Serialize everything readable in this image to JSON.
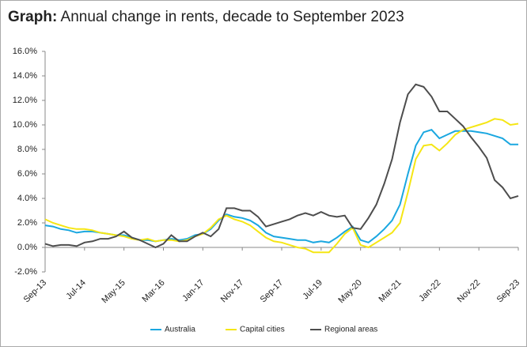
{
  "chart_data": {
    "type": "line",
    "title_prefix": "Graph:",
    "title": "Annual change in rents, decade to September 2023",
    "categories": [
      "Sep-13",
      null,
      null,
      null,
      null,
      "Jul-14",
      null,
      null,
      null,
      null,
      "May-15",
      null,
      null,
      null,
      null,
      "Mar-16",
      null,
      null,
      null,
      null,
      "Jan-17",
      null,
      null,
      null,
      null,
      "Nov-17",
      null,
      null,
      null,
      null,
      "Sep-17",
      null,
      null,
      null,
      null,
      "Jul-19",
      null,
      null,
      null,
      null,
      "May-20",
      null,
      null,
      null,
      null,
      "Mar-21",
      null,
      null,
      null,
      null,
      "Jan-22",
      null,
      null,
      null,
      null,
      "Nov-22",
      null,
      null,
      null,
      null,
      "Sep-23"
    ],
    "series": [
      {
        "name": "Australia",
        "color": "#1aa7e0",
        "values": [
          1.8,
          1.7,
          1.5,
          1.4,
          1.2,
          1.3,
          1.3,
          1.2,
          1.1,
          1.0,
          1.0,
          0.8,
          0.6,
          0.6,
          0.5,
          0.6,
          0.7,
          0.6,
          0.7,
          1.0,
          1.1,
          1.5,
          2.2,
          2.7,
          2.5,
          2.4,
          2.2,
          1.8,
          1.2,
          0.9,
          0.8,
          0.7,
          0.6,
          0.6,
          0.4,
          0.5,
          0.4,
          0.8,
          1.3,
          1.7,
          0.6,
          0.4,
          0.9,
          1.5,
          2.2,
          3.5,
          6.0,
          8.3,
          9.4,
          9.6,
          8.9,
          9.2,
          9.5,
          9.5,
          9.5,
          9.4,
          9.3,
          9.1,
          8.9,
          8.4,
          8.4
        ]
      },
      {
        "name": "Capital cities",
        "color": "#f5e614",
        "values": [
          2.3,
          2.0,
          1.8,
          1.6,
          1.5,
          1.5,
          1.4,
          1.2,
          1.1,
          1.0,
          0.9,
          0.7,
          0.6,
          0.7,
          0.5,
          0.6,
          0.6,
          0.5,
          0.6,
          0.9,
          1.1,
          1.6,
          2.3,
          2.6,
          2.3,
          2.1,
          1.8,
          1.3,
          0.8,
          0.5,
          0.4,
          0.2,
          0.0,
          -0.1,
          -0.4,
          -0.4,
          -0.4,
          0.3,
          1.1,
          1.6,
          0.2,
          0.0,
          0.4,
          0.8,
          1.2,
          2.0,
          4.5,
          7.2,
          8.3,
          8.4,
          7.9,
          8.5,
          9.2,
          9.6,
          9.8,
          10.0,
          10.2,
          10.5,
          10.4,
          10.0,
          10.1
        ]
      },
      {
        "name": "Regional areas",
        "color": "#4d4d4d",
        "values": [
          0.3,
          0.1,
          0.2,
          0.2,
          0.1,
          0.4,
          0.5,
          0.7,
          0.7,
          0.9,
          1.3,
          0.8,
          0.6,
          0.3,
          0.0,
          0.3,
          1.0,
          0.5,
          0.5,
          0.9,
          1.2,
          0.9,
          1.5,
          3.2,
          3.2,
          3.0,
          3.0,
          2.5,
          1.7,
          1.9,
          2.1,
          2.3,
          2.6,
          2.8,
          2.6,
          2.9,
          2.6,
          2.5,
          2.6,
          1.6,
          1.5,
          2.4,
          3.5,
          5.2,
          7.2,
          10.2,
          12.5,
          13.3,
          13.1,
          12.3,
          11.1,
          11.1,
          10.5,
          9.9,
          9.0,
          8.2,
          7.3,
          5.5,
          4.9,
          4.0,
          4.2
        ]
      }
    ],
    "ylim": [
      -2,
      16
    ],
    "yticks": [
      {
        "value": -2,
        "label": "-2.0%"
      },
      {
        "value": 0,
        "label": "0.0%"
      },
      {
        "value": 2,
        "label": "2.0%"
      },
      {
        "value": 4,
        "label": "4.0%"
      },
      {
        "value": 6,
        "label": "6.0%"
      },
      {
        "value": 8,
        "label": "8.0%"
      },
      {
        "value": 10,
        "label": "10.0%"
      },
      {
        "value": 12,
        "label": "12.0%"
      },
      {
        "value": 14,
        "label": "14.0%"
      },
      {
        "value": 16,
        "label": "16.0%"
      }
    ],
    "legend": "bottom"
  }
}
